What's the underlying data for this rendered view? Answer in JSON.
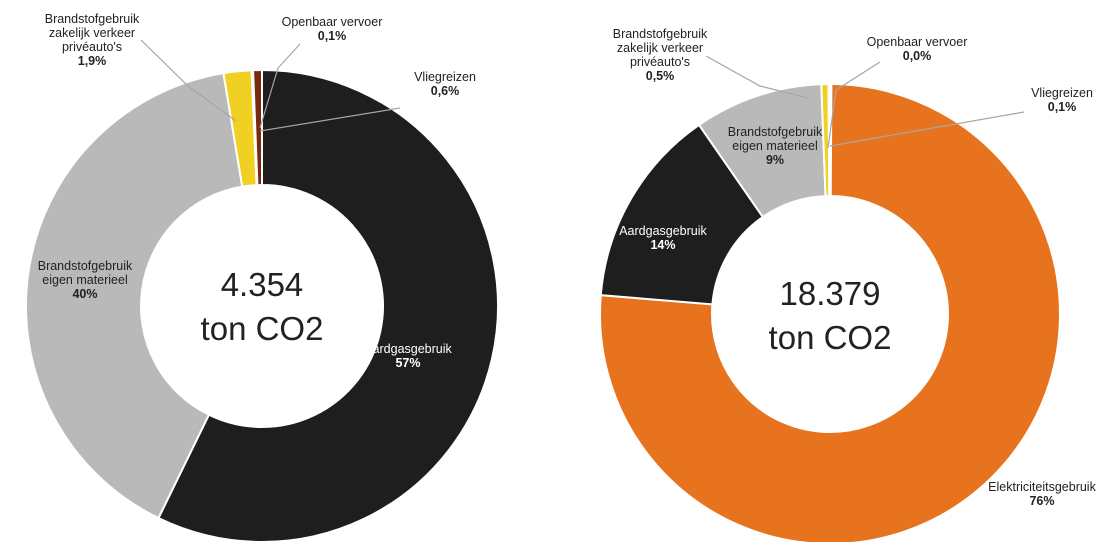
{
  "chart_data": [
    {
      "type": "donut",
      "center_text": [
        "4.354",
        "ton CO2"
      ],
      "series": [
        {
          "values": [
            57,
            40,
            1.9,
            0.1,
            0.6
          ],
          "categories": [
            "Aardgasgebruik",
            "Brandstofgebruik eigen materieel",
            "Brandstofgebruik zakelijk verkeer privéauto's",
            "Openbaar vervoer",
            "Vliegreizen"
          ]
        }
      ],
      "colors": [
        "#1e1e1e",
        "#b9b9b9",
        "#f0d022",
        "#a8371a",
        "#7a2810"
      ],
      "labels": [
        {
          "lines": [
            "Aardgasgebruik"
          ],
          "pct": "57%"
        },
        {
          "lines": [
            "Brandstofgebruik",
            "eigen materieel"
          ],
          "pct": "40%"
        },
        {
          "lines": [
            "Brandstofgebruik",
            "zakelijk verkeer",
            "privéauto's"
          ],
          "pct": "1,9%"
        },
        {
          "lines": [
            "Openbaar vervoer"
          ],
          "pct": "0,1%"
        },
        {
          "lines": [
            "Vliegreizen"
          ],
          "pct": "0,6%"
        }
      ]
    },
    {
      "type": "donut",
      "center_text": [
        "18.379",
        "ton CO2"
      ],
      "series": [
        {
          "values": [
            76,
            14,
            9,
            0.5,
            0.0,
            0.1
          ],
          "categories": [
            "Elektriciteitsgebruik",
            "Aardgasgebruik",
            "Brandstofgebruik eigen materieel",
            "Brandstofgebruik zakelijk verkeer privéauto's",
            "Openbaar vervoer",
            "Vliegreizen"
          ]
        }
      ],
      "colors": [
        "#e8731f",
        "#1e1e1e",
        "#b9b9b9",
        "#f0d022",
        "#c9a060",
        "#a8371a"
      ],
      "labels": [
        {
          "lines": [
            "Elektriciteitsgebruik"
          ],
          "pct": "76%"
        },
        {
          "lines": [
            "Aardgasgebruik"
          ],
          "pct": "14%"
        },
        {
          "lines": [
            "Brandstofgebruik",
            "eigen materieel"
          ],
          "pct": "9%"
        },
        {
          "lines": [
            "Brandstofgebruik",
            "zakelijk verkeer",
            "privéauto's"
          ],
          "pct": "0,5%"
        },
        {
          "lines": [
            "Openbaar vervoer"
          ],
          "pct": "0,0%"
        },
        {
          "lines": [
            "Vliegreizen"
          ],
          "pct": "0,1%"
        }
      ]
    }
  ]
}
